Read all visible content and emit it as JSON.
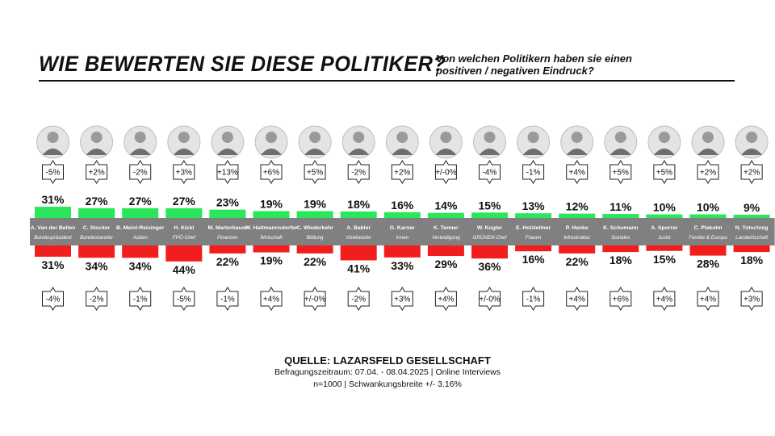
{
  "title": "WIE BEWERTEN SIE DIESE POLITIKER?",
  "subtitle": "Von welchen Politikern haben sie einen positiven / negativen Eindruck?",
  "source": {
    "title": "QUELLE: LAZARSFELD GESELLSCHAFT",
    "line1": "Befragungszeitraum: 07.04. - 08.04.2025 | Online Interviews",
    "line2": "n=1000  |  Schwankungsbreite +/- 3.16%"
  },
  "colors": {
    "positive": "#29e65a",
    "negative": "#f21e1e",
    "band": "#808080",
    "text": "#111111"
  },
  "chart_data": {
    "type": "bar",
    "categories": [
      "A. Van der Bellen",
      "C. Stocker",
      "B. Meinl-Reisinger",
      "H. Kickl",
      "M. Marterbauer",
      "W. Hattmannsdorfer",
      "C. Wiederkehr",
      "A. Babler",
      "G. Karner",
      "K. Tanner",
      "W. Kogler",
      "E. Holzleitner",
      "P. Hanke",
      "K. Schumann",
      "A. Sporrer",
      "C. Plakolm",
      "N. Totschnig"
    ],
    "roles": [
      "Bundespräsident",
      "Bundeskanzler",
      "Außen",
      "FPÖ-Chef",
      "Finanzen",
      "Wirtschaft",
      "Bildung",
      "Vizekanzler",
      "Innen",
      "Verteidigung",
      "GRÜNEN-Chef",
      "Frauen",
      "Infrastruktur",
      "Soziales",
      "Justiz",
      "Familie & Europa",
      "Landwirtschaft"
    ],
    "series": [
      {
        "name": "positiv",
        "values": [
          31,
          27,
          27,
          27,
          23,
          19,
          19,
          18,
          16,
          14,
          15,
          13,
          12,
          11,
          10,
          10,
          9
        ],
        "changes": [
          "-5%",
          "+2%",
          "-2%",
          "+3%",
          "+13%",
          "+6%",
          "+5%",
          "-2%",
          "+2%",
          "+/-0%",
          "-4%",
          "-1%",
          "+4%",
          "+5%",
          "+5%",
          "+2%",
          "+2%"
        ]
      },
      {
        "name": "negativ",
        "values": [
          31,
          34,
          34,
          44,
          22,
          19,
          22,
          41,
          33,
          29,
          36,
          16,
          22,
          18,
          15,
          28,
          18
        ],
        "changes": [
          "-4%",
          "-2%",
          "-1%",
          "-5%",
          "-1%",
          "+4%",
          "+/-0%",
          "-2%",
          "+3%",
          "+4%",
          "+/-0%",
          "-1%",
          "+4%",
          "+6%",
          "+4%",
          "+4%",
          "+3%"
        ]
      }
    ]
  }
}
